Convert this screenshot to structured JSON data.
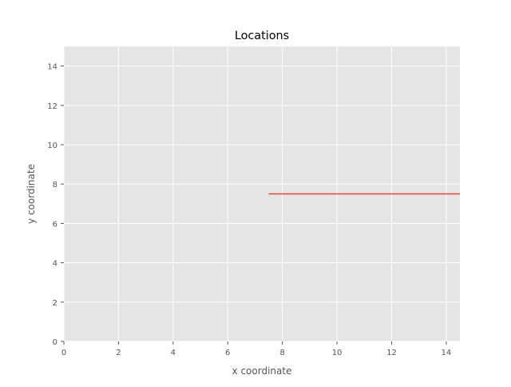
{
  "chart_data": {
    "type": "line",
    "title": "Locations",
    "xlabel": "x coordinate",
    "ylabel": "y coordinate",
    "xlim": [
      0,
      14.5
    ],
    "ylim": [
      0,
      15
    ],
    "xticks": [
      0,
      2,
      4,
      6,
      8,
      10,
      12,
      14
    ],
    "yticks": [
      0,
      2,
      4,
      6,
      8,
      10,
      12,
      14
    ],
    "grid": true,
    "series": [
      {
        "x": [
          7.5,
          14.5
        ],
        "y": [
          7.5,
          7.5
        ]
      }
    ]
  },
  "colors": {
    "plot_background": "#E5E5E5",
    "grid": "#FFFFFF",
    "series": [
      "#E24A33"
    ],
    "tick_text": "#555555",
    "label_text": "#555555",
    "title_text": "#000000"
  }
}
